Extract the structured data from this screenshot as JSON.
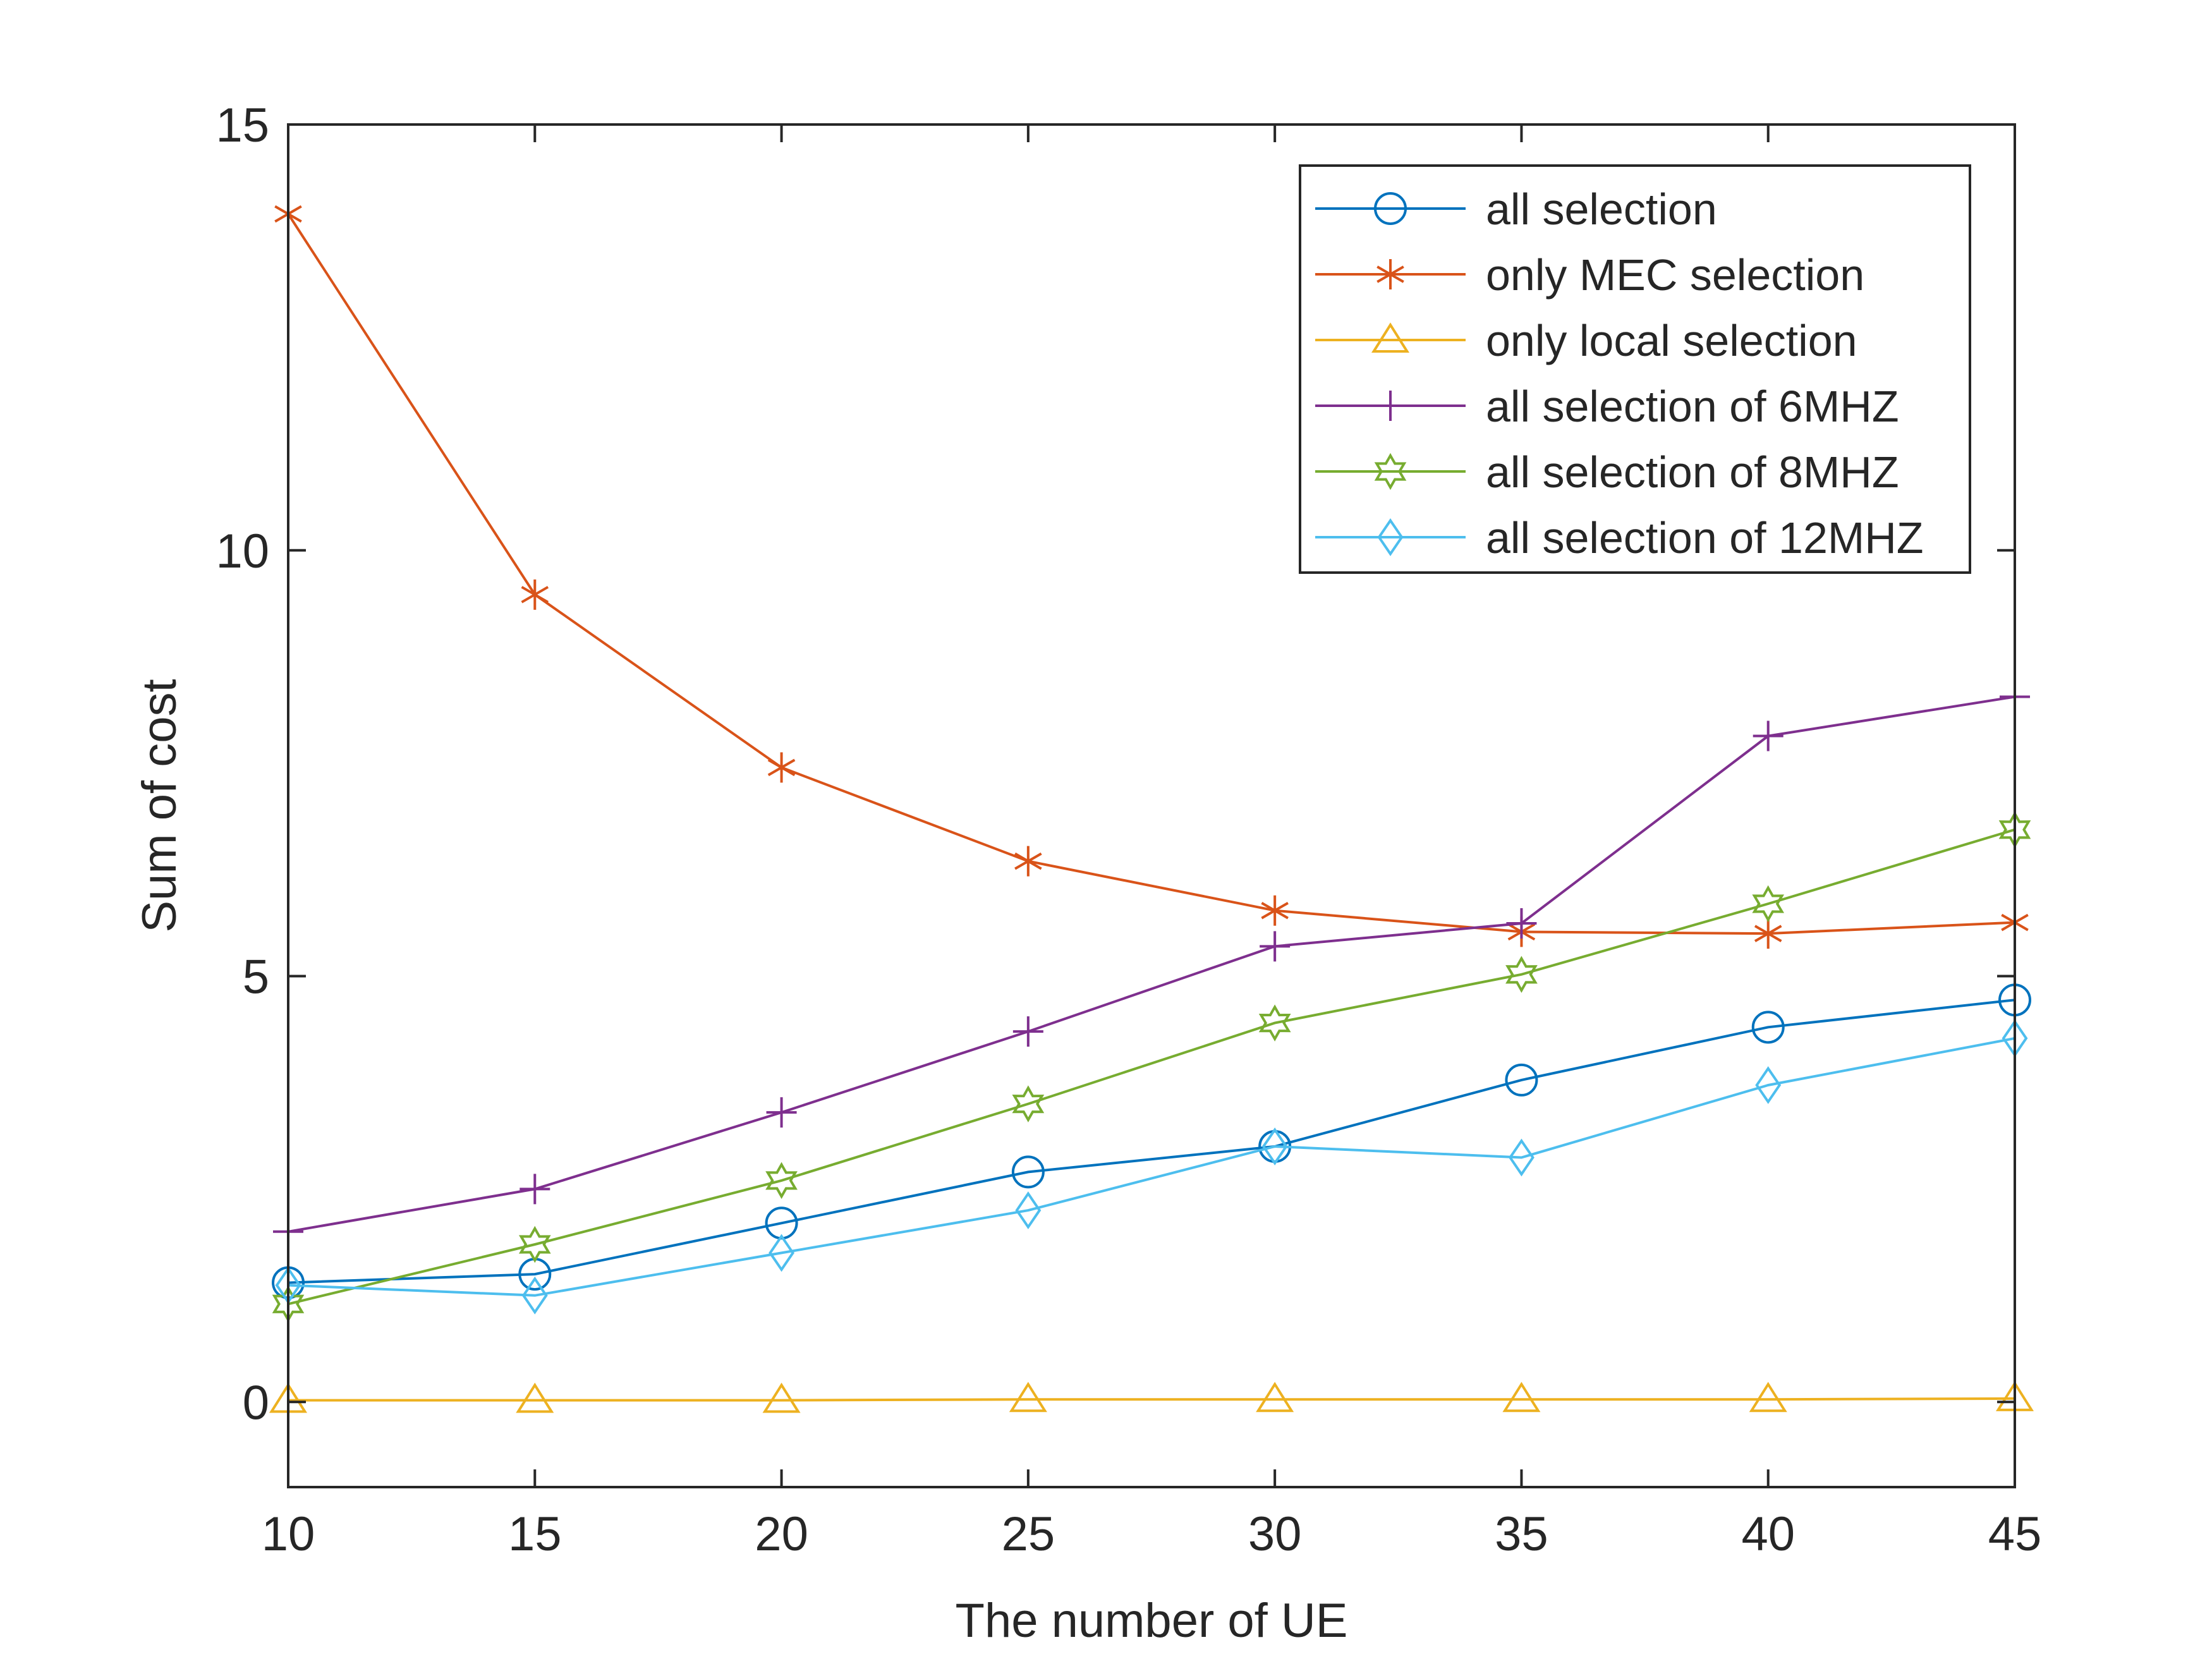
{
  "chart_data": {
    "type": "line",
    "title": "",
    "xlabel": "The number of UE",
    "ylabel": "Sum of cost",
    "x": [
      10,
      15,
      20,
      25,
      30,
      35,
      40,
      45
    ],
    "xlim": [
      10,
      45
    ],
    "ylim": [
      -1,
      15
    ],
    "xticks": [
      10,
      15,
      20,
      25,
      30,
      35,
      40,
      45
    ],
    "yticks": [
      0,
      5,
      10,
      15
    ],
    "grid": false,
    "legend_position": "top-right",
    "series": [
      {
        "name": "all selection",
        "color": "#0072BD",
        "marker": "circle",
        "values": [
          1.4,
          1.5,
          2.1,
          2.7,
          3.0,
          3.78,
          4.4,
          4.72
        ]
      },
      {
        "name": "only MEC selection",
        "color": "#D95319",
        "marker": "asterisk",
        "values": [
          13.95,
          9.48,
          7.45,
          6.35,
          5.77,
          5.52,
          5.5,
          5.63
        ]
      },
      {
        "name": "only local selection",
        "color": "#EDB120",
        "marker": "triangle",
        "values": [
          0.02,
          0.02,
          0.02,
          0.03,
          0.03,
          0.03,
          0.03,
          0.04
        ]
      },
      {
        "name": "all selection of 6MHZ",
        "color": "#7E2F8E",
        "marker": "plus",
        "values": [
          2.0,
          2.5,
          3.4,
          4.35,
          5.35,
          5.62,
          7.82,
          8.28
        ]
      },
      {
        "name": "all selection of 8MHZ",
        "color": "#77AC30",
        "marker": "hexagram",
        "values": [
          1.15,
          1.85,
          2.6,
          3.5,
          4.45,
          5.02,
          5.85,
          6.72
        ]
      },
      {
        "name": "all selection of 12MHZ",
        "color": "#4DBEEE",
        "marker": "diamond",
        "values": [
          1.37,
          1.25,
          1.75,
          2.25,
          3.0,
          2.87,
          3.72,
          4.27
        ]
      }
    ]
  }
}
